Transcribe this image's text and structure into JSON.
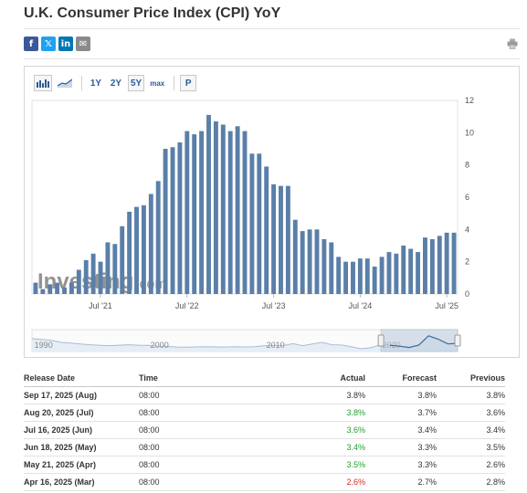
{
  "page": {
    "title": "U.K. Consumer Price Index (CPI) YoY"
  },
  "share": [
    {
      "name": "facebook",
      "glyph": "f",
      "color": "#3b5998"
    },
    {
      "name": "twitter",
      "glyph": "𝕏",
      "color": "#1da1f2"
    },
    {
      "name": "linkedin",
      "glyph": "in",
      "color": "#0077b5"
    },
    {
      "name": "email",
      "glyph": "✉",
      "color": "#8a8a8a"
    }
  ],
  "toolbar": {
    "ranges": [
      "1Y",
      "2Y",
      "5Y",
      "max"
    ],
    "selected_range": "5Y",
    "p_label": "P"
  },
  "colors": {
    "bar": "#5a7fa8",
    "link": "#2d5b9a",
    "nav_fill": "#b8c9dc",
    "green": "#1f9e2e",
    "red": "#d52b1e"
  },
  "chart_data": {
    "type": "bar",
    "x": [
      "2020-10",
      "2020-11",
      "2020-12",
      "2021-01",
      "2021-02",
      "2021-03",
      "2021-04",
      "2021-05",
      "2021-06",
      "2021-07",
      "2021-08",
      "2021-09",
      "2021-10",
      "2021-11",
      "2021-12",
      "2022-01",
      "2022-02",
      "2022-03",
      "2022-04",
      "2022-05",
      "2022-06",
      "2022-07",
      "2022-08",
      "2022-09",
      "2022-10",
      "2022-11",
      "2022-12",
      "2023-01",
      "2023-02",
      "2023-03",
      "2023-04",
      "2023-05",
      "2023-06",
      "2023-07",
      "2023-08",
      "2023-09",
      "2023-10",
      "2023-11",
      "2023-12",
      "2024-01",
      "2024-02",
      "2024-03",
      "2024-04",
      "2024-05",
      "2024-06",
      "2024-07",
      "2024-08",
      "2024-09",
      "2024-10",
      "2024-11",
      "2024-12",
      "2025-01",
      "2025-02",
      "2025-03",
      "2025-04",
      "2025-05",
      "2025-06",
      "2025-07",
      "2025-08"
    ],
    "values": [
      0.7,
      0.3,
      0.6,
      0.7,
      0.4,
      0.7,
      1.5,
      2.1,
      2.5,
      2.0,
      3.2,
      3.1,
      4.2,
      5.1,
      5.4,
      5.5,
      6.2,
      7.0,
      9.0,
      9.1,
      9.4,
      10.1,
      9.9,
      10.1,
      11.1,
      10.7,
      10.5,
      10.1,
      10.4,
      10.1,
      8.7,
      8.7,
      7.9,
      6.8,
      6.7,
      6.7,
      4.6,
      3.9,
      4.0,
      4.0,
      3.4,
      3.2,
      2.3,
      2.0,
      2.0,
      2.2,
      2.2,
      1.7,
      2.3,
      2.6,
      2.5,
      3.0,
      2.8,
      2.6,
      3.5,
      3.4,
      3.6,
      3.8,
      3.8
    ],
    "x_tick_labels": [
      "Jul '21",
      "Jul '22",
      "Jul '23",
      "Jul '24",
      "Jul '25"
    ],
    "y_tick_labels": [
      "0",
      "2",
      "4",
      "6",
      "8",
      "10",
      "12"
    ],
    "ylim": [
      0,
      12
    ],
    "y_axis_side": "right",
    "grid": false,
    "watermark": "Investing.com",
    "navigator": {
      "labels": [
        "1990",
        "2000",
        "2010",
        "2020"
      ],
      "series": [
        7,
        6.5,
        5.9,
        4.5,
        4,
        3.3,
        2.8,
        2.4,
        2.2,
        2.5,
        2.8,
        2.5,
        2.4,
        1.8,
        1.6,
        1.2,
        1.1,
        1.3,
        1.4,
        1.3,
        1.2,
        1.4,
        1.3,
        1.4,
        2.1,
        2.3,
        2.3,
        3.6,
        2.2,
        3.3,
        4.5,
        2.8,
        2.6,
        1.5,
        0.0,
        0.7,
        2.7,
        2.5,
        1.8,
        0.9,
        2.6,
        9.1,
        6.7,
        3.4,
        3.8
      ],
      "window": [
        0.82,
        1.0
      ]
    }
  },
  "table": {
    "headers": {
      "date": "Release Date",
      "time": "Time",
      "actual": "Actual",
      "forecast": "Forecast",
      "previous": "Previous"
    },
    "rows": [
      {
        "date": "Sep 17, 2025 (Aug)",
        "time": "08:00",
        "actual": "3.8%",
        "actual_color": "neutral",
        "forecast": "3.8%",
        "previous": "3.8%"
      },
      {
        "date": "Aug 20, 2025 (Jul)",
        "time": "08:00",
        "actual": "3.8%",
        "actual_color": "green",
        "forecast": "3.7%",
        "previous": "3.6%"
      },
      {
        "date": "Jul 16, 2025 (Jun)",
        "time": "08:00",
        "actual": "3.6%",
        "actual_color": "green",
        "forecast": "3.4%",
        "previous": "3.4%"
      },
      {
        "date": "Jun 18, 2025 (May)",
        "time": "08:00",
        "actual": "3.4%",
        "actual_color": "green",
        "forecast": "3.3%",
        "previous": "3.5%"
      },
      {
        "date": "May 21, 2025 (Apr)",
        "time": "08:00",
        "actual": "3.5%",
        "actual_color": "green",
        "forecast": "3.3%",
        "previous": "2.6%"
      },
      {
        "date": "Apr 16, 2025 (Mar)",
        "time": "08:00",
        "actual": "2.6%",
        "actual_color": "red",
        "forecast": "2.7%",
        "previous": "2.8%"
      }
    ]
  }
}
